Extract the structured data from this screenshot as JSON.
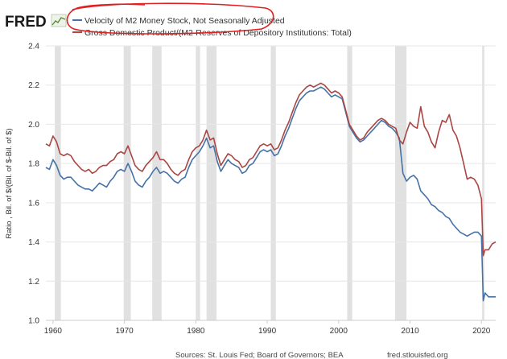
{
  "logo": {
    "text": "FRED"
  },
  "footer": {
    "sources": "Sources: St. Louis Fed; Board of Governors; BEA",
    "site": "fred.stlouisfed.org"
  },
  "colors": {
    "series1": "#4572a7",
    "series2": "#aa4643",
    "recession": "#e1e1e1",
    "grid": "#e6e6e6",
    "annotation": "#e02020"
  },
  "chart_data": {
    "type": "line",
    "title": "",
    "xlabel": "",
    "ylabel": "Ratio , Bil. of $/(Bil. of $-Bil. of $)",
    "ylim": [
      1.0,
      2.4
    ],
    "xlim": [
      1959,
      2022
    ],
    "grid": true,
    "legend_position": "top",
    "y_ticks": [
      "1.0",
      "1.2",
      "1.4",
      "1.6",
      "1.8",
      "2.0",
      "2.2",
      "2.4"
    ],
    "x_ticks": [
      "1960",
      "1970",
      "1980",
      "1990",
      "2000",
      "2010",
      "2020"
    ],
    "recessions": [
      [
        1960.25,
        1961.1
      ],
      [
        1969.9,
        1970.9
      ],
      [
        1973.9,
        1975.2
      ],
      [
        1980.0,
        1980.6
      ],
      [
        1981.5,
        1982.9
      ],
      [
        1990.5,
        1991.2
      ],
      [
        2001.2,
        2001.9
      ],
      [
        2007.9,
        2009.5
      ],
      [
        2020.1,
        2020.4
      ]
    ],
    "series": [
      {
        "name": "Velocity of M2 Money Stock, Not Seasonally Adjusted",
        "color": "#4572a7",
        "points": [
          [
            1959.0,
            1.78
          ],
          [
            1959.5,
            1.77
          ],
          [
            1960.0,
            1.82
          ],
          [
            1960.5,
            1.79
          ],
          [
            1961.0,
            1.74
          ],
          [
            1961.5,
            1.72
          ],
          [
            1962.0,
            1.73
          ],
          [
            1962.5,
            1.73
          ],
          [
            1963.0,
            1.71
          ],
          [
            1963.5,
            1.69
          ],
          [
            1964.0,
            1.68
          ],
          [
            1964.5,
            1.67
          ],
          [
            1965.0,
            1.67
          ],
          [
            1965.5,
            1.66
          ],
          [
            1966.0,
            1.68
          ],
          [
            1966.5,
            1.7
          ],
          [
            1967.0,
            1.69
          ],
          [
            1967.5,
            1.68
          ],
          [
            1968.0,
            1.71
          ],
          [
            1968.5,
            1.73
          ],
          [
            1969.0,
            1.76
          ],
          [
            1969.5,
            1.77
          ],
          [
            1970.0,
            1.76
          ],
          [
            1970.5,
            1.8
          ],
          [
            1971.0,
            1.76
          ],
          [
            1971.5,
            1.71
          ],
          [
            1972.0,
            1.69
          ],
          [
            1972.5,
            1.68
          ],
          [
            1973.0,
            1.71
          ],
          [
            1973.5,
            1.73
          ],
          [
            1974.0,
            1.76
          ],
          [
            1974.5,
            1.78
          ],
          [
            1975.0,
            1.75
          ],
          [
            1975.5,
            1.76
          ],
          [
            1976.0,
            1.75
          ],
          [
            1976.5,
            1.73
          ],
          [
            1977.0,
            1.71
          ],
          [
            1977.5,
            1.7
          ],
          [
            1978.0,
            1.72
          ],
          [
            1978.5,
            1.73
          ],
          [
            1979.0,
            1.78
          ],
          [
            1979.5,
            1.82
          ],
          [
            1980.0,
            1.84
          ],
          [
            1980.5,
            1.86
          ],
          [
            1981.0,
            1.89
          ],
          [
            1981.5,
            1.93
          ],
          [
            1982.0,
            1.88
          ],
          [
            1982.5,
            1.89
          ],
          [
            1983.0,
            1.81
          ],
          [
            1983.5,
            1.76
          ],
          [
            1984.0,
            1.79
          ],
          [
            1984.5,
            1.82
          ],
          [
            1985.0,
            1.8
          ],
          [
            1985.5,
            1.79
          ],
          [
            1986.0,
            1.78
          ],
          [
            1986.5,
            1.75
          ],
          [
            1987.0,
            1.76
          ],
          [
            1987.5,
            1.79
          ],
          [
            1988.0,
            1.8
          ],
          [
            1988.5,
            1.83
          ],
          [
            1989.0,
            1.86
          ],
          [
            1989.5,
            1.87
          ],
          [
            1990.0,
            1.86
          ],
          [
            1990.5,
            1.87
          ],
          [
            1991.0,
            1.84
          ],
          [
            1991.5,
            1.85
          ],
          [
            1992.0,
            1.89
          ],
          [
            1992.5,
            1.94
          ],
          [
            1993.0,
            1.98
          ],
          [
            1993.5,
            2.03
          ],
          [
            1994.0,
            2.08
          ],
          [
            1994.5,
            2.12
          ],
          [
            1995.0,
            2.14
          ],
          [
            1995.5,
            2.16
          ],
          [
            1996.0,
            2.17
          ],
          [
            1996.5,
            2.17
          ],
          [
            1997.0,
            2.18
          ],
          [
            1997.5,
            2.19
          ],
          [
            1998.0,
            2.18
          ],
          [
            1998.5,
            2.16
          ],
          [
            1999.0,
            2.14
          ],
          [
            1999.5,
            2.15
          ],
          [
            2000.0,
            2.14
          ],
          [
            2000.5,
            2.13
          ],
          [
            2001.0,
            2.06
          ],
          [
            2001.5,
            1.99
          ],
          [
            2002.0,
            1.96
          ],
          [
            2002.5,
            1.93
          ],
          [
            2003.0,
            1.91
          ],
          [
            2003.5,
            1.92
          ],
          [
            2004.0,
            1.94
          ],
          [
            2004.5,
            1.96
          ],
          [
            2005.0,
            1.98
          ],
          [
            2005.5,
            2.0
          ],
          [
            2006.0,
            2.02
          ],
          [
            2006.5,
            2.01
          ],
          [
            2007.0,
            1.99
          ],
          [
            2007.5,
            1.98
          ],
          [
            2008.0,
            1.96
          ],
          [
            2008.5,
            1.93
          ],
          [
            2009.0,
            1.75
          ],
          [
            2009.5,
            1.71
          ],
          [
            2010.0,
            1.73
          ],
          [
            2010.5,
            1.74
          ],
          [
            2011.0,
            1.72
          ],
          [
            2011.5,
            1.66
          ],
          [
            2012.0,
            1.64
          ],
          [
            2012.5,
            1.62
          ],
          [
            2013.0,
            1.59
          ],
          [
            2013.5,
            1.58
          ],
          [
            2014.0,
            1.56
          ],
          [
            2014.5,
            1.55
          ],
          [
            2015.0,
            1.53
          ],
          [
            2015.5,
            1.52
          ],
          [
            2016.0,
            1.49
          ],
          [
            2016.5,
            1.47
          ],
          [
            2017.0,
            1.45
          ],
          [
            2017.5,
            1.44
          ],
          [
            2018.0,
            1.43
          ],
          [
            2018.5,
            1.44
          ],
          [
            2019.0,
            1.45
          ],
          [
            2019.5,
            1.45
          ],
          [
            2020.0,
            1.43
          ],
          [
            2020.25,
            1.1
          ],
          [
            2020.5,
            1.14
          ],
          [
            2021.0,
            1.12
          ],
          [
            2021.5,
            1.12
          ],
          [
            2022.0,
            1.12
          ]
        ]
      },
      {
        "name": "Gross Domestic Product/(M2-Reserves of Depository Institutions: Total)",
        "color": "#aa4643",
        "points": [
          [
            1959.0,
            1.9
          ],
          [
            1959.5,
            1.89
          ],
          [
            1960.0,
            1.94
          ],
          [
            1960.5,
            1.91
          ],
          [
            1961.0,
            1.85
          ],
          [
            1961.5,
            1.84
          ],
          [
            1962.0,
            1.85
          ],
          [
            1962.5,
            1.84
          ],
          [
            1963.0,
            1.81
          ],
          [
            1963.5,
            1.79
          ],
          [
            1964.0,
            1.77
          ],
          [
            1964.5,
            1.76
          ],
          [
            1965.0,
            1.77
          ],
          [
            1965.5,
            1.75
          ],
          [
            1966.0,
            1.76
          ],
          [
            1966.5,
            1.78
          ],
          [
            1967.0,
            1.79
          ],
          [
            1967.5,
            1.79
          ],
          [
            1968.0,
            1.81
          ],
          [
            1968.5,
            1.82
          ],
          [
            1969.0,
            1.85
          ],
          [
            1969.5,
            1.86
          ],
          [
            1970.0,
            1.85
          ],
          [
            1970.5,
            1.89
          ],
          [
            1971.0,
            1.84
          ],
          [
            1971.5,
            1.79
          ],
          [
            1972.0,
            1.77
          ],
          [
            1972.5,
            1.76
          ],
          [
            1973.0,
            1.79
          ],
          [
            1973.5,
            1.81
          ],
          [
            1974.0,
            1.83
          ],
          [
            1974.5,
            1.86
          ],
          [
            1975.0,
            1.82
          ],
          [
            1975.5,
            1.82
          ],
          [
            1976.0,
            1.8
          ],
          [
            1976.5,
            1.77
          ],
          [
            1977.0,
            1.75
          ],
          [
            1977.5,
            1.74
          ],
          [
            1978.0,
            1.76
          ],
          [
            1978.5,
            1.77
          ],
          [
            1979.0,
            1.82
          ],
          [
            1979.5,
            1.86
          ],
          [
            1980.0,
            1.88
          ],
          [
            1980.5,
            1.89
          ],
          [
            1981.0,
            1.92
          ],
          [
            1981.5,
            1.97
          ],
          [
            1982.0,
            1.92
          ],
          [
            1982.5,
            1.93
          ],
          [
            1983.0,
            1.85
          ],
          [
            1983.5,
            1.79
          ],
          [
            1984.0,
            1.82
          ],
          [
            1984.5,
            1.85
          ],
          [
            1985.0,
            1.84
          ],
          [
            1985.5,
            1.82
          ],
          [
            1986.0,
            1.81
          ],
          [
            1986.5,
            1.78
          ],
          [
            1987.0,
            1.79
          ],
          [
            1987.5,
            1.82
          ],
          [
            1988.0,
            1.83
          ],
          [
            1988.5,
            1.86
          ],
          [
            1989.0,
            1.89
          ],
          [
            1989.5,
            1.9
          ],
          [
            1990.0,
            1.89
          ],
          [
            1990.5,
            1.9
          ],
          [
            1991.0,
            1.87
          ],
          [
            1991.5,
            1.88
          ],
          [
            1992.0,
            1.92
          ],
          [
            1992.5,
            1.97
          ],
          [
            1993.0,
            2.01
          ],
          [
            1993.5,
            2.06
          ],
          [
            1994.0,
            2.11
          ],
          [
            1994.5,
            2.15
          ],
          [
            1995.0,
            2.17
          ],
          [
            1995.5,
            2.19
          ],
          [
            1996.0,
            2.2
          ],
          [
            1996.5,
            2.19
          ],
          [
            1997.0,
            2.2
          ],
          [
            1997.5,
            2.21
          ],
          [
            1998.0,
            2.2
          ],
          [
            1998.5,
            2.18
          ],
          [
            1999.0,
            2.16
          ],
          [
            1999.5,
            2.17
          ],
          [
            2000.0,
            2.16
          ],
          [
            2000.5,
            2.14
          ],
          [
            2001.0,
            2.07
          ],
          [
            2001.5,
            2.0
          ],
          [
            2002.0,
            1.97
          ],
          [
            2002.5,
            1.94
          ],
          [
            2003.0,
            1.92
          ],
          [
            2003.5,
            1.93
          ],
          [
            2004.0,
            1.96
          ],
          [
            2004.5,
            1.98
          ],
          [
            2005.0,
            2.0
          ],
          [
            2005.5,
            2.02
          ],
          [
            2006.0,
            2.03
          ],
          [
            2006.5,
            2.02
          ],
          [
            2007.0,
            2.0
          ],
          [
            2007.5,
            1.99
          ],
          [
            2008.0,
            1.98
          ],
          [
            2008.5,
            1.92
          ],
          [
            2009.0,
            1.9
          ],
          [
            2009.5,
            1.96
          ],
          [
            2010.0,
            2.01
          ],
          [
            2010.5,
            1.99
          ],
          [
            2011.0,
            1.98
          ],
          [
            2011.5,
            2.09
          ],
          [
            2012.0,
            1.99
          ],
          [
            2012.5,
            1.96
          ],
          [
            2013.0,
            1.91
          ],
          [
            2013.5,
            1.88
          ],
          [
            2014.0,
            1.96
          ],
          [
            2014.5,
            2.02
          ],
          [
            2015.0,
            2.01
          ],
          [
            2015.5,
            2.05
          ],
          [
            2016.0,
            1.97
          ],
          [
            2016.5,
            1.94
          ],
          [
            2017.0,
            1.88
          ],
          [
            2017.5,
            1.8
          ],
          [
            2018.0,
            1.72
          ],
          [
            2018.5,
            1.73
          ],
          [
            2019.0,
            1.72
          ],
          [
            2019.5,
            1.69
          ],
          [
            2020.0,
            1.62
          ],
          [
            2020.25,
            1.33
          ],
          [
            2020.5,
            1.36
          ],
          [
            2021.0,
            1.36
          ],
          [
            2021.5,
            1.39
          ],
          [
            2022.0,
            1.4
          ]
        ]
      }
    ]
  }
}
